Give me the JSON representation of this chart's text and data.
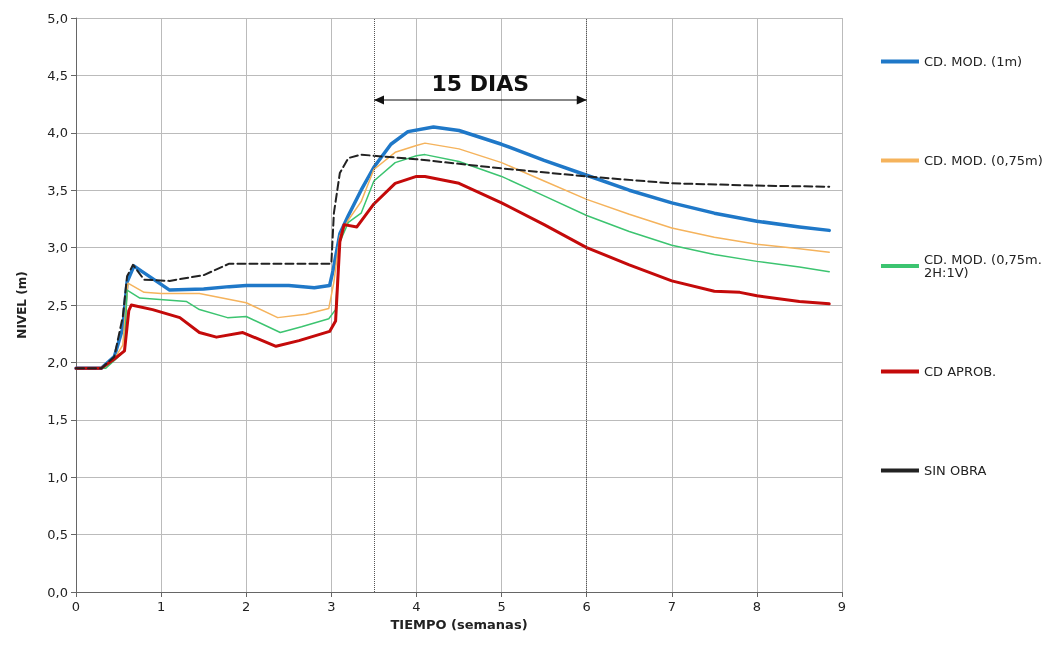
{
  "chart_data": {
    "type": "line",
    "xlabel": "TIEMPO (semanas)",
    "ylabel": "NIVEL (m)",
    "xlim": [
      0,
      9
    ],
    "xticks": [
      0,
      1,
      2,
      3,
      4,
      5,
      6,
      7,
      8,
      9
    ],
    "ylim": [
      0,
      5
    ],
    "yticks": [
      {
        "value": 0,
        "label": "0,0"
      },
      {
        "value": 0.5,
        "label": "0,5"
      },
      {
        "value": 1,
        "label": "1,0"
      },
      {
        "value": 1.5,
        "label": "1,5"
      },
      {
        "value": 2,
        "label": "2,0"
      },
      {
        "value": 2.5,
        "label": "2,5"
      },
      {
        "value": 3,
        "label": "3,0"
      },
      {
        "value": 3.5,
        "label": "3,5"
      },
      {
        "value": 4,
        "label": "4,0"
      },
      {
        "value": 4.5,
        "label": "4,5"
      },
      {
        "value": 5,
        "label": "5,0"
      }
    ],
    "grid": true,
    "legend": "right",
    "marker": "none",
    "series": [
      {
        "name": "CD. MOD. (1m)",
        "color": "#1f78c8",
        "line_style": "solid",
        "x": [
          0,
          0.3,
          0.45,
          0.55,
          0.6,
          0.68,
          0.8,
          1,
          1.1,
          1.5,
          1.8,
          2,
          2.5,
          2.8,
          2.98,
          3.02,
          3.1,
          3.2,
          3.35,
          3.5,
          3.7,
          3.9,
          4.2,
          4.5,
          5,
          5.5,
          6,
          6.5,
          7,
          7.5,
          8,
          8.5,
          8.85
        ],
        "values": [
          1.95,
          1.95,
          2.05,
          2.3,
          2.7,
          2.84,
          2.78,
          2.68,
          2.63,
          2.64,
          2.66,
          2.67,
          2.67,
          2.65,
          2.67,
          2.8,
          3.12,
          3.28,
          3.5,
          3.7,
          3.9,
          4.01,
          4.05,
          4.02,
          3.9,
          3.76,
          3.63,
          3.5,
          3.39,
          3.3,
          3.23,
          3.18,
          3.15
        ]
      },
      {
        "name": "CD. MOD. (0,75m)",
        "color": "#f5b35c",
        "line_style": "solid",
        "x": [
          0,
          0.3,
          0.45,
          0.55,
          0.61,
          0.8,
          1.0,
          1.45,
          2.0,
          2.37,
          2.7,
          2.97,
          3.03,
          3.1,
          3.2,
          3.35,
          3.5,
          3.75,
          4.0,
          4.1,
          4.5,
          5,
          5.5,
          6,
          6.5,
          7,
          7.5,
          8,
          8.5,
          8.85
        ],
        "values": [
          1.95,
          1.95,
          2.03,
          2.15,
          2.69,
          2.61,
          2.6,
          2.6,
          2.52,
          2.39,
          2.42,
          2.47,
          2.7,
          3.1,
          3.24,
          3.4,
          3.68,
          3.83,
          3.89,
          3.91,
          3.86,
          3.74,
          3.58,
          3.42,
          3.29,
          3.17,
          3.09,
          3.03,
          2.99,
          2.96
        ]
      },
      {
        "name": "CD. MOD. (0,75m. 2H:1V)",
        "color": "#3cc470",
        "line_style": "solid",
        "x": [
          0,
          0.35,
          0.5,
          0.57,
          0.6,
          0.75,
          1.3,
          1.45,
          1.78,
          2.0,
          2.4,
          2.65,
          2.97,
          3.05,
          3.1,
          3.2,
          3.35,
          3.5,
          3.75,
          4.0,
          4.1,
          4.5,
          5,
          5.5,
          6,
          6.5,
          7,
          7.5,
          8,
          8.5,
          8.85
        ],
        "values": [
          1.95,
          1.95,
          2.05,
          2.1,
          2.63,
          2.56,
          2.53,
          2.46,
          2.39,
          2.4,
          2.26,
          2.31,
          2.38,
          2.46,
          3.05,
          3.22,
          3.3,
          3.58,
          3.74,
          3.8,
          3.81,
          3.75,
          3.62,
          3.45,
          3.28,
          3.14,
          3.02,
          2.94,
          2.88,
          2.83,
          2.79
        ]
      },
      {
        "name": "CD APROB.",
        "color": "#c40a0a",
        "line_style": "solid",
        "x": [
          0,
          0.3,
          0.45,
          0.57,
          0.62,
          0.65,
          0.9,
          1.22,
          1.45,
          1.65,
          1.96,
          2.35,
          2.62,
          2.98,
          3.05,
          3.1,
          3.15,
          3.3,
          3.5,
          3.75,
          4.0,
          4.1,
          4.5,
          5,
          5.5,
          6,
          6.5,
          7,
          7.5,
          7.8,
          8,
          8.5,
          8.85
        ],
        "values": [
          1.95,
          1.95,
          2.03,
          2.1,
          2.45,
          2.5,
          2.46,
          2.39,
          2.26,
          2.22,
          2.26,
          2.14,
          2.19,
          2.27,
          2.36,
          3.05,
          3.2,
          3.18,
          3.38,
          3.56,
          3.62,
          3.62,
          3.56,
          3.39,
          3.2,
          3.0,
          2.85,
          2.71,
          2.62,
          2.61,
          2.58,
          2.53,
          2.51
        ]
      },
      {
        "name": "SIN OBRA",
        "color": "#222222",
        "line_style": "dashed",
        "x": [
          0,
          0.3,
          0.45,
          0.55,
          0.6,
          0.67,
          0.8,
          1.1,
          1.5,
          1.8,
          2.95,
          3.0,
          3.03,
          3.1,
          3.2,
          3.35,
          3.5,
          4,
          5,
          6,
          7,
          8,
          8.85
        ],
        "values": [
          1.95,
          1.95,
          2.05,
          2.4,
          2.75,
          2.85,
          2.72,
          2.71,
          2.76,
          2.86,
          2.86,
          2.86,
          3.3,
          3.65,
          3.78,
          3.81,
          3.8,
          3.77,
          3.69,
          3.62,
          3.56,
          3.54,
          3.53
        ]
      }
    ],
    "ref_lines": [
      {
        "axis": "x",
        "value": 3.5,
        "color": "#555555",
        "line_style": "dotted"
      },
      {
        "axis": "x",
        "value": 6,
        "color": "#555555",
        "line_style": "dotted"
      }
    ],
    "annotations": [
      "15 DIAS"
    ]
  }
}
